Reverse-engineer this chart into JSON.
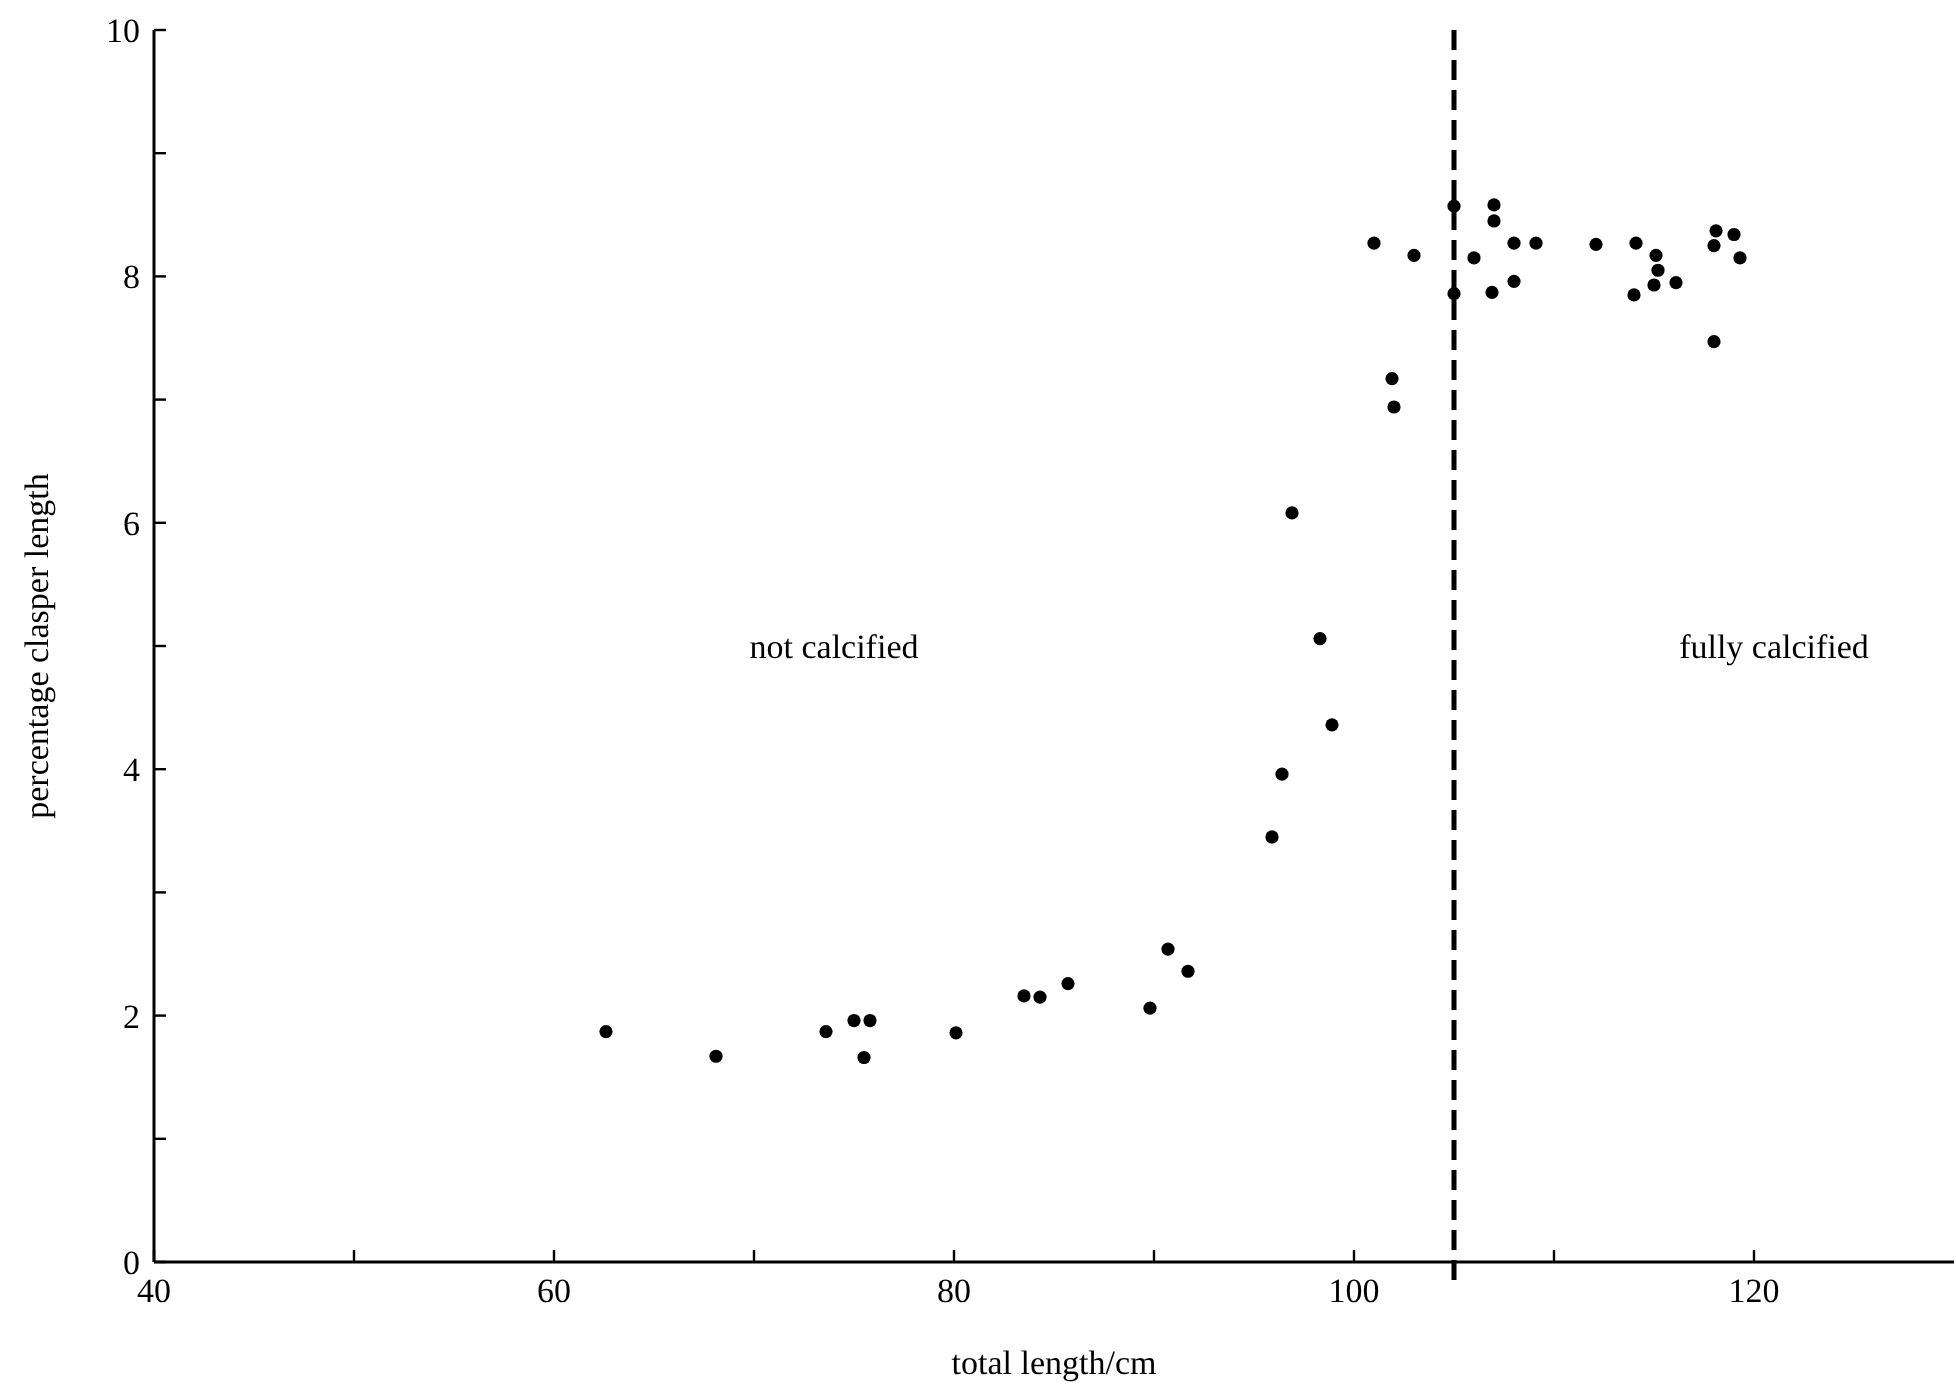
{
  "chart_data": {
    "type": "scatter",
    "xlabel": "total length/cm",
    "ylabel": "percentage clasper length",
    "xlim": [
      40,
      130
    ],
    "xticks": [
      40,
      {
        "value": 50,
        "label": null
      },
      60,
      {
        "value": 70,
        "label": null
      },
      80,
      {
        "value": 90,
        "label": null
      },
      100,
      {
        "value": 110,
        "label": null
      },
      120
    ],
    "ylim": [
      0,
      10
    ],
    "yticks": [
      0,
      {
        "value": 1,
        "label": null
      },
      2,
      {
        "value": 3,
        "label": null
      },
      4,
      {
        "value": 5,
        "label": null
      },
      6,
      {
        "value": 7,
        "label": null
      },
      8,
      {
        "value": 9,
        "label": null
      },
      10
    ],
    "marker": "circle",
    "grid": false,
    "series": [
      {
        "color": "#000000",
        "x": [
          62.6,
          68.1,
          73.6,
          75.0,
          75.8,
          75.5,
          80.1,
          83.5,
          84.3,
          85.7,
          89.8,
          90.7,
          91.7,
          95.9,
          96.4,
          96.9,
          98.3,
          98.9,
          101.9,
          102.0,
          101.0,
          103.0,
          105.0,
          105.0,
          106.0,
          107.0,
          107.0,
          106.9,
          108.0,
          108.0,
          109.1,
          112.1,
          114.1,
          114.0,
          115.1,
          115.2,
          115.0,
          116.1,
          118.1,
          118.0,
          119.0,
          119.3,
          118.0
        ],
        "values": [
          1.87,
          1.67,
          1.87,
          1.96,
          1.96,
          1.66,
          1.86,
          2.16,
          2.15,
          2.26,
          2.06,
          2.54,
          2.36,
          3.45,
          3.96,
          6.08,
          5.06,
          4.36,
          7.17,
          6.94,
          8.27,
          8.17,
          8.57,
          7.86,
          8.15,
          8.58,
          8.45,
          7.87,
          8.27,
          7.96,
          8.27,
          8.26,
          8.27,
          7.85,
          8.17,
          8.05,
          7.93,
          7.95,
          8.37,
          8.25,
          8.34,
          8.15,
          7.47
        ]
      }
    ],
    "ref_lines": [
      {
        "axis": "x",
        "value": 105,
        "line_style": "dashed",
        "color": "#000000"
      }
    ],
    "annotations": [
      "not calcified",
      "fully calcified"
    ]
  }
}
